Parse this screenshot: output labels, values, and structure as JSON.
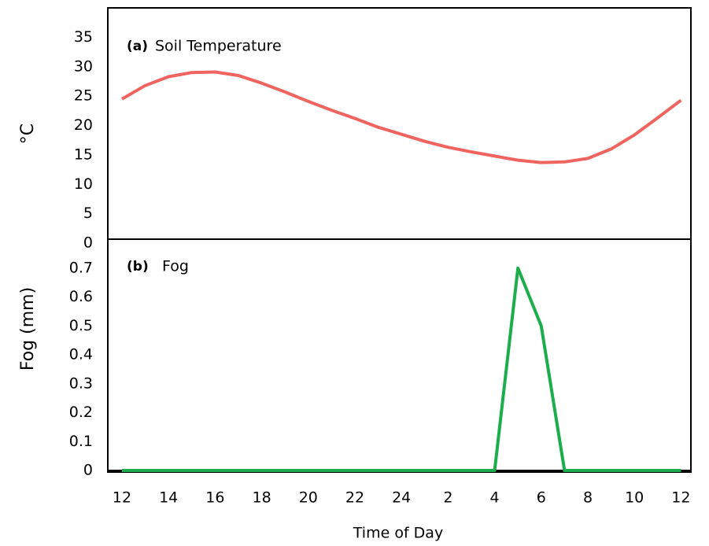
{
  "chart_data": [
    {
      "type": "line",
      "panel_label": "(a)",
      "title": "Soil Temperature",
      "ylabel": "°C",
      "ylim": [
        0,
        40
      ],
      "yticks": [
        0,
        5,
        10,
        15,
        20,
        25,
        30,
        35
      ],
      "series": [
        {
          "name": "Soil Temperature",
          "color": "#f06460",
          "values": [
            24.5,
            26.8,
            28.3,
            29.0,
            29.1,
            28.5,
            27.2,
            25.7,
            24.1,
            22.6,
            21.2,
            19.7,
            18.5,
            17.3,
            16.3,
            15.5,
            14.8,
            14.1,
            13.7,
            13.8,
            14.4,
            16.0,
            18.4,
            21.3,
            24.3
          ]
        }
      ]
    },
    {
      "type": "line",
      "panel_label": "(b)",
      "title": "Fog",
      "ylabel": "Fog (mm)",
      "xlabel": "Time of Day",
      "categories": [
        "12",
        null,
        "14",
        null,
        "16",
        null,
        "18",
        null,
        "20",
        null,
        "22",
        null,
        "24",
        null,
        "2",
        null,
        "4",
        null,
        "6",
        null,
        "8",
        null,
        "10",
        null,
        "12"
      ],
      "ylim": [
        0,
        0.8
      ],
      "yticks": [
        0,
        0.1,
        0.2,
        0.3,
        0.4,
        0.5,
        0.6,
        0.7
      ],
      "series": [
        {
          "name": "Fog",
          "color": "#1cae4c",
          "values": [
            0,
            0,
            0,
            0,
            0,
            0,
            0,
            0,
            0,
            0,
            0,
            0,
            0,
            0,
            0,
            0,
            0,
            0.7,
            0.5,
            0,
            0,
            0,
            0,
            0,
            0
          ]
        }
      ]
    }
  ]
}
